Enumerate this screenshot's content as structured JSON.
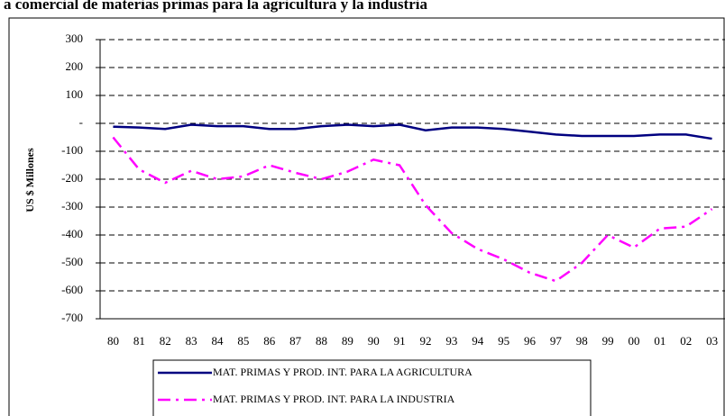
{
  "chart_data": {
    "type": "line",
    "title": "a comercial de materias primas para la agricultura y la industria",
    "ylabel": "US $ Millones",
    "categories": [
      "80",
      "81",
      "82",
      "83",
      "84",
      "85",
      "86",
      "87",
      "88",
      "89",
      "90",
      "91",
      "92",
      "93",
      "94",
      "95",
      "96",
      "97",
      "98",
      "99",
      "00",
      "01",
      "02",
      "03"
    ],
    "ylim": [
      -700,
      300
    ],
    "yticks": [
      -700,
      -600,
      -500,
      -400,
      -300,
      -200,
      -100,
      {
        "value": 0,
        "label": "-"
      },
      100,
      200,
      300
    ],
    "grid": true,
    "series": [
      {
        "name": "MAT. PRIMAS Y PROD. INT. PARA LA AGRICULTURA",
        "color": "#000080",
        "dash": "solid",
        "values": [
          -12,
          -15,
          -20,
          -5,
          -10,
          -10,
          -20,
          -20,
          -10,
          -5,
          -10,
          -5,
          -25,
          -15,
          -15,
          -20,
          -30,
          -40,
          -45,
          -45,
          -45,
          -40,
          -40,
          -55
        ]
      },
      {
        "name": "MAT. PRIMAS Y PROD. INT. PARA LA INDUSTRIA",
        "color": "#ff00ff",
        "dash": "dashdot",
        "values": [
          -50,
          -165,
          -213,
          -170,
          -200,
          -190,
          -150,
          -177,
          -200,
          -173,
          -130,
          -150,
          -293,
          -393,
          -450,
          -487,
          -535,
          -565,
          -500,
          -400,
          -445,
          -377,
          -370,
          -307
        ]
      }
    ]
  }
}
